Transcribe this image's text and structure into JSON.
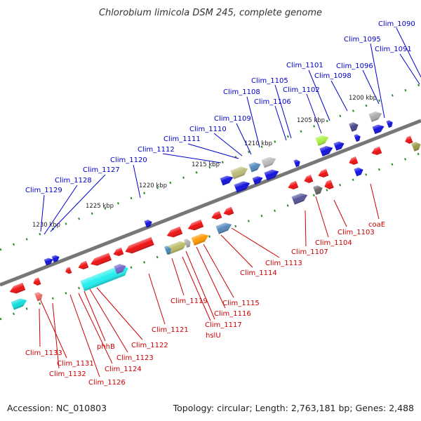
{
  "title": "Chlorobium limicola DSM 245, complete genome",
  "footer": {
    "accession": "Accession: NC_010803",
    "topology": "Topology: circular; Length: 2,763,181 bp; Genes: 2,488"
  },
  "colors": {
    "backbone": "#777777",
    "forward_label": "#0000cc",
    "reverse_label": "#cc0000",
    "tick": "#228822"
  },
  "scale_labels": [
    "1200 kbp",
    "1205 kbp",
    "1210 kbp",
    "1215 kbp",
    "1220 kbp",
    "1225 kbp",
    "1230 kbp"
  ],
  "forward_genes": [
    "Clim_1090",
    "Clim_1091",
    "Clim_1095",
    "Clim_1096",
    "Clim_1098",
    "Clim_1101",
    "Clim_1102",
    "Clim_1105",
    "Clim_1106",
    "Clim_1108",
    "Clim_1109",
    "Clim_1110",
    "Clim_1111",
    "Clim_1112",
    "Clim_1120",
    "Clim_1127",
    "Clim_1128",
    "Clim_1129"
  ],
  "reverse_genes": [
    "coaE",
    "Clim_1103",
    "Clim_1104",
    "Clim_1107",
    "Clim_1113",
    "Clim_1114",
    "Clim_1115",
    "Clim_1116",
    "Clim_1117",
    "hslU",
    "Clim_1119",
    "Clim_1121",
    "Clim_1122",
    "Clim_1123",
    "phhB",
    "Clim_1124",
    "Clim_1126",
    "Clim_1131",
    "Clim_1132",
    "Clim_1133"
  ]
}
